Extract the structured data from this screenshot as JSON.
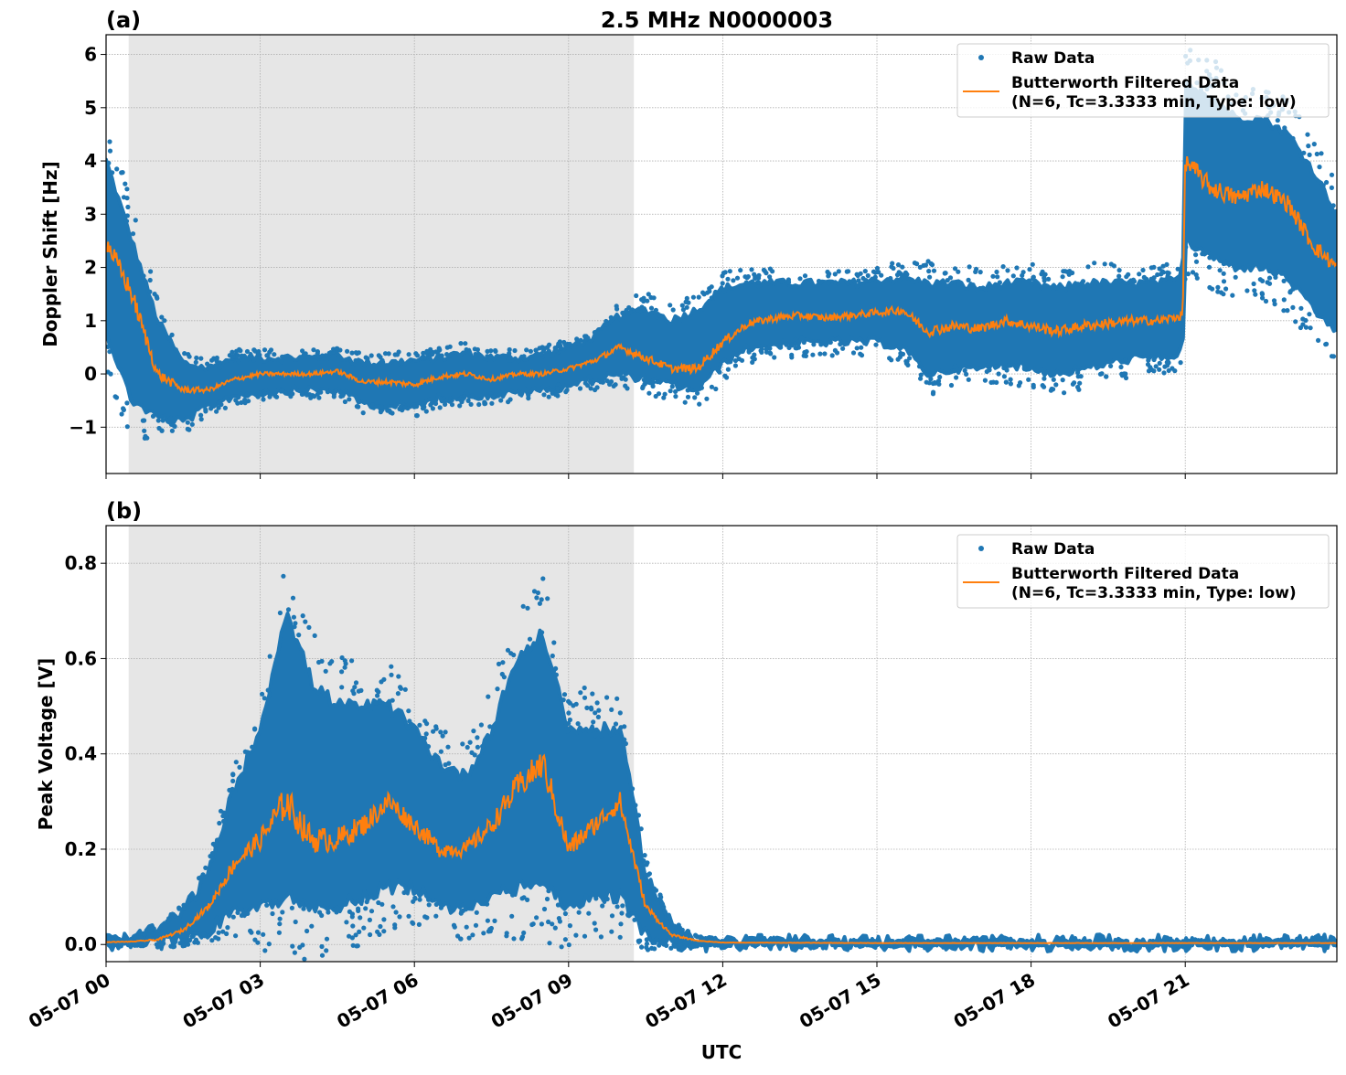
{
  "figure": {
    "title": "2.5 MHz N0000003",
    "xlabel": "UTC"
  },
  "colors": {
    "raw": "#1f77b4",
    "filtered": "#ff7f0e",
    "shade": "#e6e6e6",
    "grid": "#b0b0b0"
  },
  "legend": {
    "raw_label": "Raw Data",
    "filtered_label_line1": "Butterworth Filtered Data",
    "filtered_label_line2": "(N=6, Tc=3.3333 min, Type: low)",
    "placement": "upper-right"
  },
  "chart_data": [
    {
      "type": "scatter+line",
      "panel_label": "(a)",
      "ylabel": "Doppler Shift [Hz]",
      "x_unit": "hours UTC since 05-07 00:00",
      "xlim": [
        0,
        23.95
      ],
      "ylim": [
        -1.87,
        6.37
      ],
      "yticks": [
        -1,
        0,
        1,
        2,
        3,
        4,
        5,
        6
      ],
      "ytick_labels": [
        "−1",
        "0",
        "1",
        "2",
        "3",
        "4",
        "5",
        "6"
      ],
      "grid": true,
      "shaded_interval": [
        0.44,
        10.27
      ],
      "x": [
        0,
        0.5,
        1,
        1.5,
        2,
        2.5,
        3,
        3.5,
        4,
        4.5,
        5,
        5.5,
        6,
        6.5,
        7,
        7.5,
        8,
        8.5,
        9,
        9.5,
        10,
        10.5,
        11,
        11.5,
        12,
        12.5,
        13,
        13.5,
        14,
        14.5,
        15,
        15.5,
        16,
        16.5,
        17,
        17.5,
        18,
        18.5,
        19,
        19.5,
        20,
        20.5,
        20.95,
        21,
        21.5,
        22,
        22.5,
        23,
        23.5,
        23.95
      ],
      "filtered": [
        2.5,
        1.5,
        0.0,
        -0.3,
        -0.3,
        -0.1,
        0.0,
        0.0,
        0.0,
        0.05,
        -0.15,
        -0.15,
        -0.2,
        -0.05,
        0.0,
        -0.1,
        0.0,
        0.0,
        0.1,
        0.25,
        0.5,
        0.3,
        0.1,
        0.1,
        0.6,
        0.95,
        1.05,
        1.1,
        1.05,
        1.1,
        1.15,
        1.2,
        0.8,
        0.9,
        0.85,
        1.0,
        0.9,
        0.8,
        0.9,
        0.95,
        1.0,
        1.0,
        1.1,
        4.0,
        3.5,
        3.3,
        3.5,
        3.2,
        2.4,
        2.0
      ],
      "raw_low": [
        0.8,
        -0.5,
        -0.8,
        -0.9,
        -0.6,
        -0.4,
        -0.35,
        -0.3,
        -0.3,
        -0.3,
        -0.55,
        -0.6,
        -0.6,
        -0.45,
        -0.4,
        -0.4,
        -0.35,
        -0.3,
        -0.2,
        -0.1,
        0.0,
        -0.1,
        -0.2,
        -0.3,
        0.2,
        0.5,
        0.55,
        0.6,
        0.6,
        0.6,
        0.6,
        0.5,
        0.0,
        0.1,
        0.1,
        0.2,
        0.1,
        0.0,
        0.1,
        0.2,
        0.3,
        0.3,
        0.4,
        2.5,
        2.2,
        2.0,
        2.0,
        1.8,
        1.2,
        0.8
      ],
      "raw_high": [
        4.0,
        2.5,
        1.0,
        0.2,
        0.1,
        0.3,
        0.3,
        0.3,
        0.3,
        0.35,
        0.2,
        0.2,
        0.25,
        0.3,
        0.4,
        0.3,
        0.3,
        0.35,
        0.5,
        0.7,
        1.1,
        1.2,
        1.0,
        1.2,
        1.6,
        1.7,
        1.7,
        1.7,
        1.7,
        1.7,
        1.75,
        1.8,
        1.7,
        1.7,
        1.6,
        1.7,
        1.7,
        1.6,
        1.7,
        1.7,
        1.7,
        1.7,
        1.8,
        5.5,
        5.2,
        4.8,
        4.8,
        4.5,
        3.8,
        3.0
      ]
    },
    {
      "type": "scatter+line",
      "panel_label": "(b)",
      "ylabel": "Peak Voltage [V]",
      "x_unit": "hours UTC since 05-07 00:00",
      "xlim": [
        0,
        23.95
      ],
      "ylim": [
        -0.036,
        0.879
      ],
      "yticks": [
        0.0,
        0.2,
        0.4,
        0.6,
        0.8
      ],
      "ytick_labels": [
        "0.0",
        "0.2",
        "0.4",
        "0.6",
        "0.8"
      ],
      "xticks": [
        0,
        3,
        6,
        9,
        12,
        15,
        18,
        21
      ],
      "xtick_labels": [
        "05-07 00",
        "05-07 03",
        "05-07 06",
        "05-07 09",
        "05-07 12",
        "05-07 15",
        "05-07 18",
        "05-07 21"
      ],
      "grid": true,
      "shaded_interval": [
        0.44,
        10.27
      ],
      "x": [
        0,
        0.5,
        1,
        1.5,
        2,
        2.5,
        3,
        3.5,
        4,
        4.5,
        5,
        5.5,
        6,
        6.5,
        7,
        7.5,
        8,
        8.5,
        9,
        9.5,
        10,
        10.5,
        11,
        11.5,
        12,
        15,
        18,
        21,
        23.95
      ],
      "filtered": [
        0.005,
        0.006,
        0.01,
        0.03,
        0.08,
        0.17,
        0.22,
        0.3,
        0.22,
        0.22,
        0.25,
        0.3,
        0.25,
        0.2,
        0.2,
        0.25,
        0.33,
        0.38,
        0.2,
        0.25,
        0.3,
        0.08,
        0.02,
        0.008,
        0.004,
        0.003,
        0.003,
        0.003,
        0.003
      ],
      "raw_low": [
        0,
        0,
        0,
        0.01,
        0.03,
        0.07,
        0.08,
        0.1,
        0.08,
        0.08,
        0.1,
        0.12,
        0.12,
        0.08,
        0.08,
        0.1,
        0.12,
        0.13,
        0.08,
        0.1,
        0.1,
        0.02,
        0,
        0,
        0,
        0,
        0,
        0,
        0
      ],
      "raw_high": [
        0.01,
        0.01,
        0.03,
        0.07,
        0.15,
        0.33,
        0.45,
        0.7,
        0.55,
        0.5,
        0.5,
        0.5,
        0.45,
        0.38,
        0.35,
        0.45,
        0.6,
        0.65,
        0.45,
        0.45,
        0.45,
        0.15,
        0.04,
        0.015,
        0.006,
        0.006,
        0.006,
        0.006,
        0.006
      ]
    }
  ]
}
